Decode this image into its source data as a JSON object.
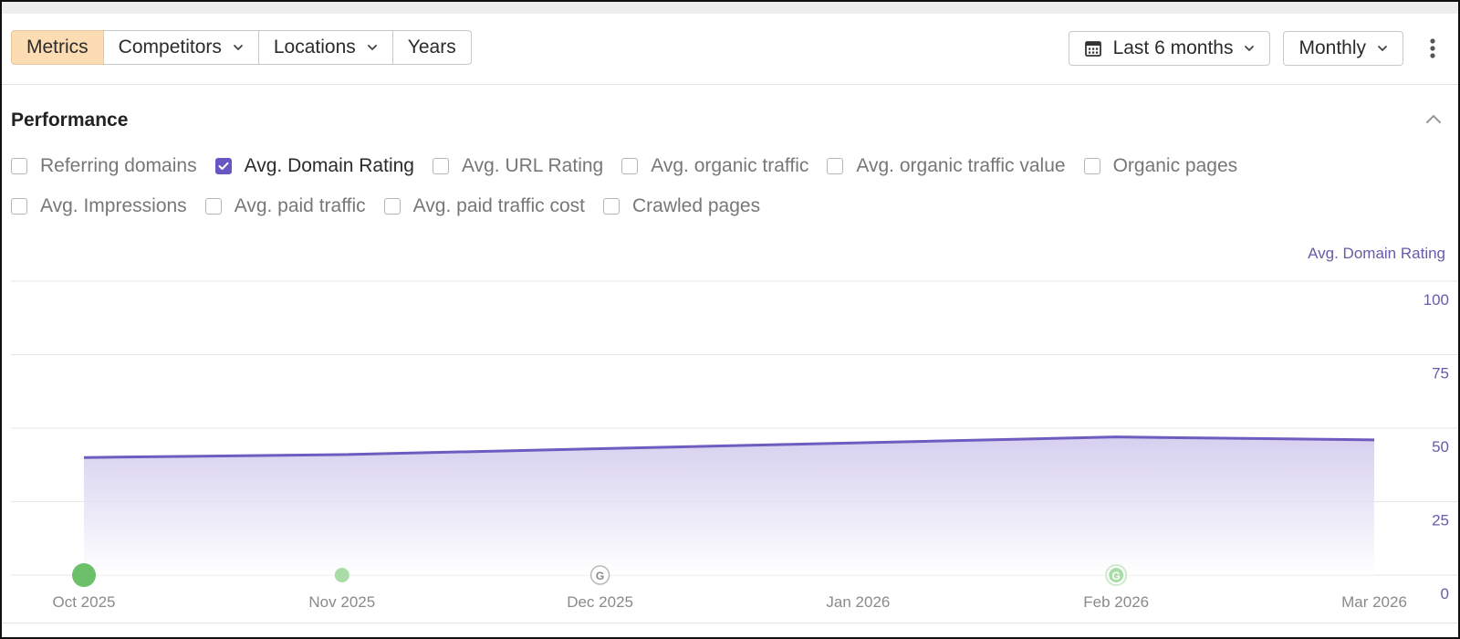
{
  "toolbar": {
    "tabs": [
      {
        "label": "Metrics",
        "active": true,
        "dropdown": false
      },
      {
        "label": "Competitors",
        "active": false,
        "dropdown": true
      },
      {
        "label": "Locations",
        "active": false,
        "dropdown": true
      },
      {
        "label": "Years",
        "active": false,
        "dropdown": false
      }
    ],
    "date_range": {
      "label": "Last 6 months",
      "icon": "calendar-icon"
    },
    "interval": {
      "label": "Monthly"
    },
    "more_icon": "vertical-dots-icon"
  },
  "performance": {
    "title": "Performance",
    "collapse_icon": "chevron-up-icon",
    "metrics_row1": [
      {
        "label": "Referring domains",
        "checked": false
      },
      {
        "label": "Avg. Domain Rating",
        "checked": true
      },
      {
        "label": "Avg. URL Rating",
        "checked": false
      },
      {
        "label": "Avg. organic traffic",
        "checked": false
      },
      {
        "label": "Avg. organic traffic value",
        "checked": false
      },
      {
        "label": "Organic pages",
        "checked": false
      }
    ],
    "metrics_row2": [
      {
        "label": "Avg. Impressions",
        "checked": false
      },
      {
        "label": "Avg. paid traffic",
        "checked": false
      },
      {
        "label": "Avg. paid traffic cost",
        "checked": false
      },
      {
        "label": "Crawled pages",
        "checked": false
      }
    ]
  },
  "colors": {
    "accent": "#6a56c2",
    "active_tab_bg": "#fcdcb2",
    "series_line": "#6e5cc0",
    "series_fill": "#d9d3ef",
    "marker_green": "#6cc06a",
    "marker_green_light": "#a9dca6"
  },
  "chart_data": {
    "type": "area",
    "series_label": "Avg. Domain Rating",
    "x": [
      "Oct 2025",
      "Nov 2025",
      "Dec 2025",
      "Jan 2026",
      "Feb 2026",
      "Mar 2026"
    ],
    "series": [
      {
        "name": "Avg. Domain Rating",
        "values": [
          40,
          41,
          43,
          45,
          47,
          46
        ]
      }
    ],
    "y_ticks": [
      "100",
      "75",
      "50",
      "25",
      "0"
    ],
    "ylim": [
      0,
      100
    ],
    "grid": true,
    "markers": [
      {
        "x": "Oct 2025",
        "kind": "green-dot-large"
      },
      {
        "x": "Nov 2025",
        "kind": "green-dot-small"
      },
      {
        "x": "Dec 2025",
        "kind": "google-update",
        "label": "G"
      },
      {
        "x": "Feb 2026",
        "kind": "google-update-green",
        "label": "G"
      }
    ]
  }
}
